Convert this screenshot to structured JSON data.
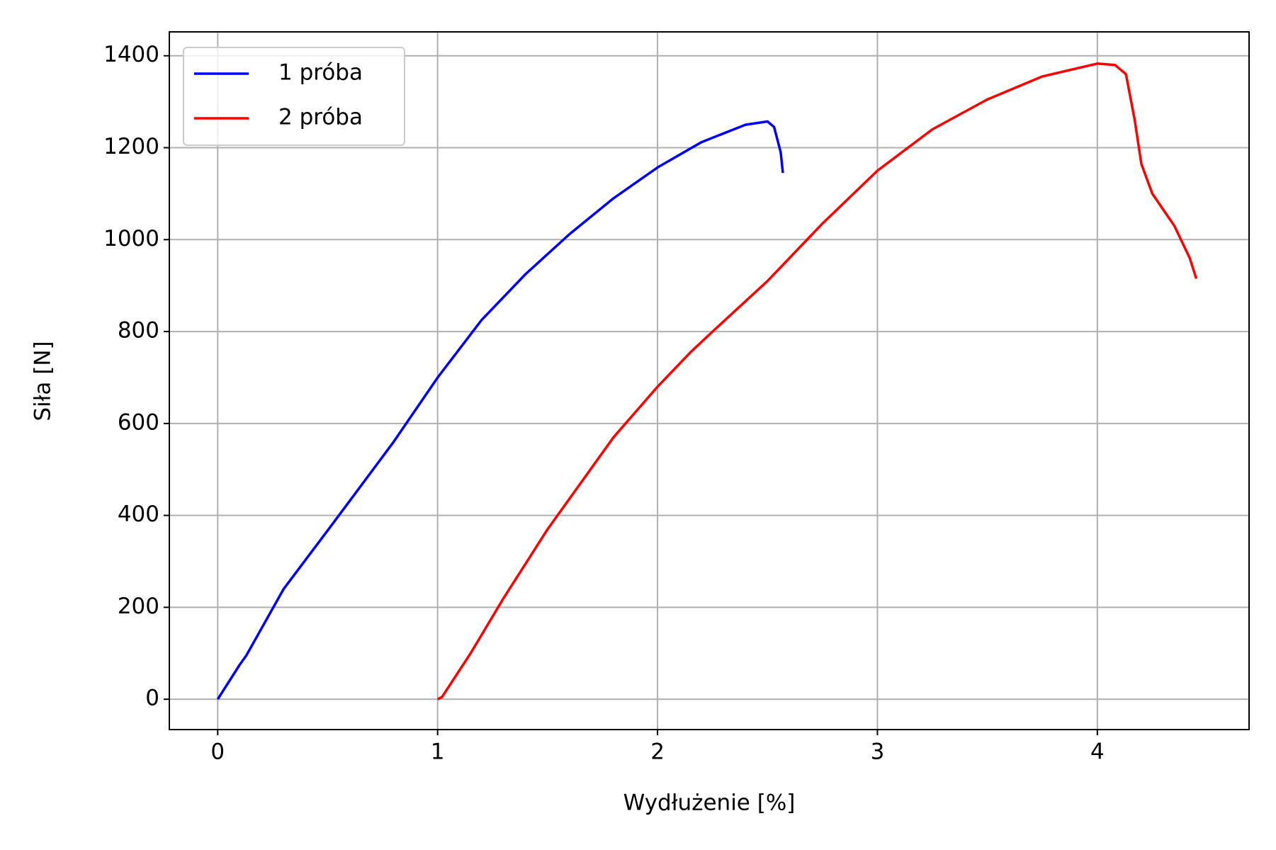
{
  "chart_data": {
    "type": "line",
    "xlabel": "Wydłużenie [%]",
    "ylabel": "Siła [N]",
    "xlim": [
      -0.22,
      4.69
    ],
    "ylim": [
      -66,
      1452
    ],
    "xticks": [
      0,
      1,
      2,
      3,
      4
    ],
    "yticks": [
      0,
      200,
      400,
      600,
      800,
      1000,
      1200,
      1400
    ],
    "grid": true,
    "legend": "upper left",
    "series": [
      {
        "name": "1 próba",
        "color": "#0000ff",
        "x": [
          0,
          0.1,
          0.13,
          0.3,
          0.52,
          0.8,
          1.0,
          1.2,
          1.4,
          1.6,
          1.8,
          2.0,
          2.2,
          2.4,
          2.5,
          2.53,
          2.56,
          2.57
        ],
        "values": [
          0,
          75,
          95,
          240,
          380,
          560,
          700,
          825,
          925,
          1012,
          1090,
          1157,
          1212,
          1250,
          1257,
          1245,
          1190,
          1145
        ]
      },
      {
        "name": "2 próba",
        "color": "#ff0000",
        "x": [
          1.0,
          1.02,
          1.15,
          1.3,
          1.5,
          1.8,
          2.0,
          2.15,
          2.25,
          2.5,
          2.75,
          3.0,
          3.25,
          3.5,
          3.75,
          4.0,
          4.08,
          4.13,
          4.17,
          4.2,
          4.25,
          4.35,
          4.42,
          4.45
        ],
        "values": [
          0,
          5,
          100,
          220,
          370,
          570,
          680,
          755,
          800,
          910,
          1035,
          1150,
          1240,
          1305,
          1355,
          1383,
          1380,
          1360,
          1260,
          1165,
          1100,
          1030,
          960,
          915
        ]
      }
    ]
  }
}
